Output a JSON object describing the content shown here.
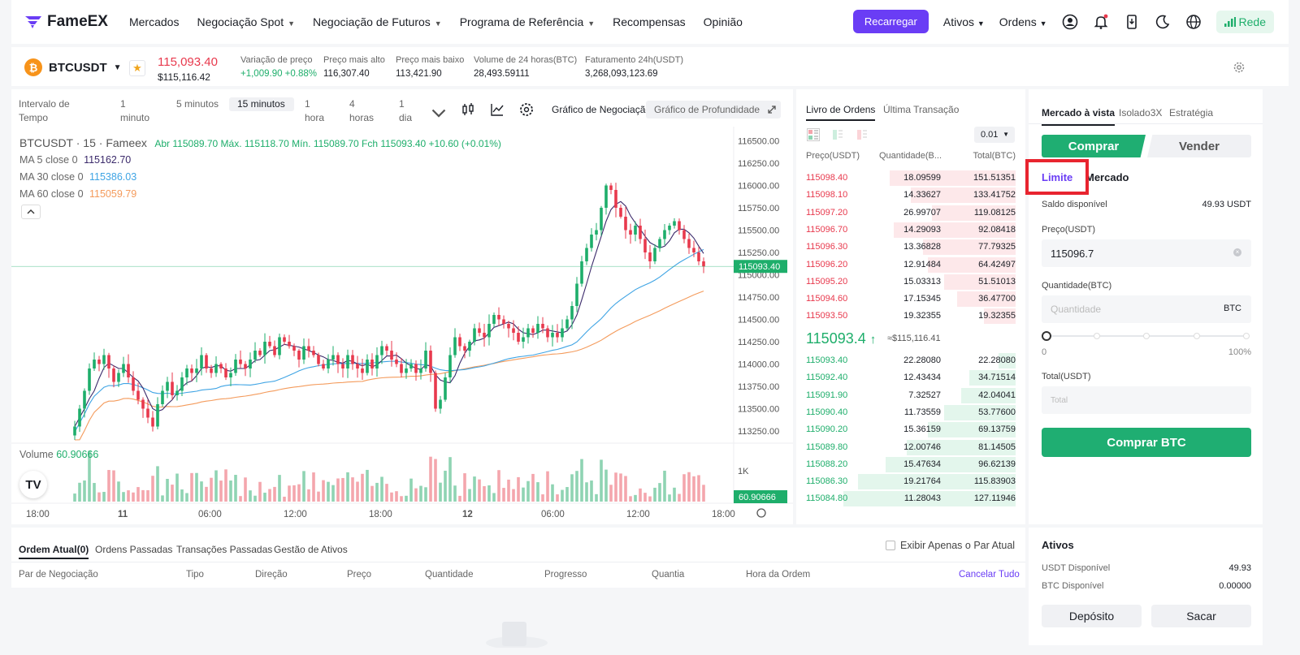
{
  "brand": {
    "name": "FameEX"
  },
  "nav": {
    "items": [
      "Mercados",
      "Negociação Spot",
      "Negociação de Futuros",
      "Programa de Referência",
      "Recompensas",
      "Opinião"
    ],
    "recharge": "Recarregar",
    "assets": "Ativos",
    "orders": "Ordens",
    "network": "Rede"
  },
  "ticker": {
    "pair": "BTCUSDT",
    "price": "115,093.40",
    "price_usd": "$115,116.42",
    "stats": [
      {
        "label": "Variação de preço",
        "value": "+1,009.90 +0.88%"
      },
      {
        "label": "Preço mais alto",
        "value": "116,307.40"
      },
      {
        "label": "Preço mais baixo",
        "value": "113,421.90"
      },
      {
        "label": "Volume de 24 horas(BTC)",
        "value": "28,493.59111"
      },
      {
        "label": "Faturamento 24h(USDT)",
        "value": "3,268,093,123.69"
      }
    ]
  },
  "chart_toolbar": {
    "interval_label": "Intervalo de Tempo",
    "intervals": [
      "1 minuto",
      "5 minutos",
      "15 minutos",
      "1 hora",
      "4 horas",
      "1 dia"
    ],
    "trading_chart": "Gráfico de Negociação",
    "depth_chart": "Gráfico de Profundidade"
  },
  "chart_legend": {
    "title": "BTCUSDT · 15 · Fameex",
    "ohlc": "Abr 115089.70  Máx. 115118.70  Mín. 115089.70  Fch 115093.40  +10.60 (+0.01%)",
    "ma5": "MA 5 close 0",
    "ma5_val": "115162.70",
    "ma30": "MA 30 close 0",
    "ma30_val": "115386.03",
    "ma60": "MA 60 close 0",
    "ma60_val": "115059.79",
    "volume_label": "Volume",
    "volume_val": "60.90666"
  },
  "chart_data": {
    "type": "candlestick",
    "y_ticks": [
      "116500.00",
      "116250.00",
      "116000.00",
      "115750.00",
      "115500.00",
      "115250.00",
      "115000.00",
      "114750.00",
      "114500.00",
      "114250.00",
      "114000.00",
      "113750.00",
      "113500.00",
      "113250.00"
    ],
    "ylim": [
      113150,
      116550
    ],
    "x_ticks": [
      "18:00",
      "11",
      "06:00",
      "12:00",
      "18:00",
      "12",
      "06:00",
      "12:00",
      "18:00"
    ],
    "last_price": "115093.40",
    "volume_last": "60.90666",
    "volume_tick": "1K",
    "close": [
      113300,
      113500,
      113700,
      113950,
      114050,
      114000,
      114100,
      113950,
      113800,
      113900,
      114000,
      113850,
      113700,
      113600,
      113500,
      113400,
      113300,
      113550,
      113700,
      113800,
      113650,
      113700,
      113850,
      113950,
      113900,
      113950,
      114100,
      113950,
      113900,
      114000,
      113950,
      113850,
      113900,
      114050,
      114000,
      113950,
      114050,
      114150,
      114100,
      114250,
      114200,
      114100,
      114300,
      114250,
      114200,
      114150,
      114050,
      114200,
      114150,
      114100,
      114000,
      113950,
      114050,
      114100,
      114000,
      113950,
      114100,
      114000,
      113950,
      113900,
      114050,
      113950,
      114100,
      114200,
      114150,
      114050,
      114000,
      113900,
      113950,
      114000,
      113900,
      113950,
      114150,
      113900,
      113500,
      113600,
      113850,
      114100,
      114300,
      114200,
      114150,
      114250,
      114400,
      114350,
      114300,
      114450,
      114550,
      114500,
      114450,
      114400,
      114350,
      114250,
      114300,
      114400,
      114350,
      114450,
      114400,
      114300,
      114350,
      114300,
      114400,
      114500,
      114650,
      114900,
      115150,
      115300,
      115450,
      115500,
      115750,
      116000,
      115950,
      115750,
      115650,
      115500,
      115450,
      115550,
      115400,
      115250,
      115150,
      115300,
      115400,
      115500,
      115550,
      115600,
      115500,
      115400,
      115300,
      115250,
      115150,
      115093
    ]
  },
  "orderbook": {
    "tab_book": "Livro de Ordens",
    "tab_last": "Última Transação",
    "precision": "0.01",
    "col_price": "Preço(USDT)",
    "col_qty": "Quantidade(B...",
    "col_total": "Total(BTC)",
    "asks": [
      [
        "115098.40",
        "18.09599",
        "151.51351",
        0.6
      ],
      [
        "115098.10",
        "14.33627",
        "133.41752",
        0.5
      ],
      [
        "115097.20",
        "26.99707",
        "119.08125",
        0.4
      ],
      [
        "115096.70",
        "14.29093",
        "92.08418",
        0.58
      ],
      [
        "115096.30",
        "13.36828",
        "77.79325",
        0.44
      ],
      [
        "115096.20",
        "12.91484",
        "64.42497",
        0.42
      ],
      [
        "115095.20",
        "15.03313",
        "51.51013",
        0.34
      ],
      [
        "115094.60",
        "17.15345",
        "36.47700",
        0.28
      ],
      [
        "115093.50",
        "19.32355",
        "19.32355",
        0.15
      ]
    ],
    "last_price": "115093.4",
    "last_arrow": "↑",
    "last_usd": "≈$115,116.41",
    "bids": [
      [
        "115093.40",
        "22.28080",
        "22.28080",
        0.08
      ],
      [
        "115092.40",
        "12.43434",
        "34.71514",
        0.22
      ],
      [
        "115091.90",
        "7.32527",
        "42.04041",
        0.26
      ],
      [
        "115090.40",
        "11.73559",
        "53.77600",
        0.34
      ],
      [
        "115090.20",
        "15.36159",
        "69.13759",
        0.42
      ],
      [
        "115089.80",
        "12.00746",
        "81.14505",
        0.52
      ],
      [
        "115088.20",
        "15.47634",
        "96.62139",
        0.62
      ],
      [
        "115086.30",
        "19.21764",
        "115.83903",
        0.75
      ],
      [
        "115084.80",
        "11.28043",
        "127.11946",
        0.82
      ]
    ]
  },
  "trade": {
    "tabs": [
      "Mercado à vista",
      "Isolado3X",
      "Estratégia"
    ],
    "buy": "Comprar",
    "sell": "Vender",
    "limit": "Limite",
    "market": "Mercado",
    "balance_label": "Saldo disponível",
    "balance_value": "49.93 USDT",
    "price_label": "Preço(USDT)",
    "price_value": "115096.7",
    "qty_label": "Quantidade(BTC)",
    "qty_placeholder": "Quantidade",
    "qty_unit": "BTC",
    "slider_min": "0",
    "slider_max": "100%",
    "slider_value": 0,
    "total_label": "Total(USDT)",
    "total_placeholder": "Total",
    "submit": "Comprar BTC"
  },
  "orders": {
    "tabs": [
      "Ordem Atual(0)",
      "Ordens Passadas",
      "Transações Passadas",
      "Gestão de Ativos"
    ],
    "only_pair": "Exibir Apenas o Par Atual",
    "columns": [
      "Par de Negociação",
      "Tipo",
      "Direção",
      "Preço",
      "Quantidade",
      "Progresso",
      "Quantia",
      "Hora da Ordem"
    ],
    "cancel_all": "Cancelar Tudo"
  },
  "assets": {
    "title": "Ativos",
    "usdt_label": "USDT Disponível",
    "usdt_value": "49.93",
    "btc_label": "BTC Disponível",
    "btc_value": "0.00000",
    "deposit": "Depósito",
    "withdraw": "Sacar"
  },
  "colors": {
    "accent": "#6a3df5",
    "up": "#1eae6b",
    "down": "#e8394d",
    "highlight": "#e8242f"
  }
}
